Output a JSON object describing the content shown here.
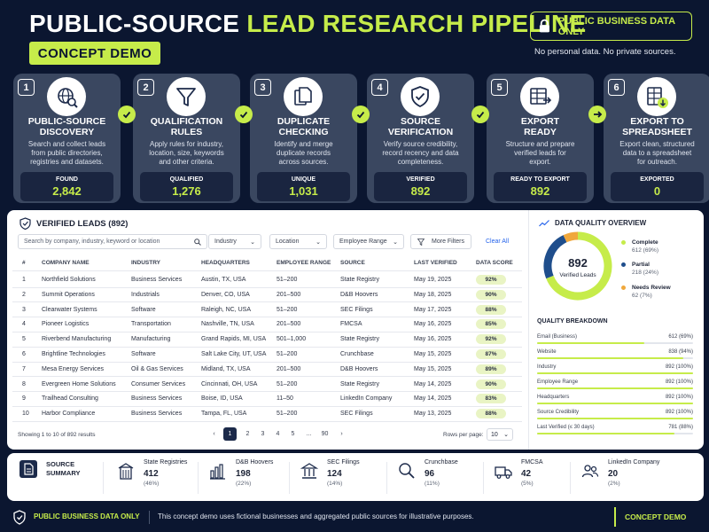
{
  "header": {
    "title_part1": "PUBLIC-SOURCE",
    "title_part2": "LEAD RESEARCH PIPELINE",
    "badge": "CONCEPT DEMO",
    "public_badge": "PUBLIC BUSINESS DATA ONLY",
    "note": "No personal data. No private sources."
  },
  "steps": [
    {
      "num": "1",
      "title": "PUBLIC-SOURCE\nDISCOVERY",
      "desc": "Search and collect leads\nfrom public directories,\nregistries and datasets.",
      "stat_label": "FOUND",
      "stat_value": "2,842",
      "icon": "globe-search-icon"
    },
    {
      "num": "2",
      "title": "QUALIFICATION\nRULES",
      "desc": "Apply rules for industry,\nlocation, size, keywords\nand other criteria.",
      "stat_label": "QUALIFIED",
      "stat_value": "1,276",
      "icon": "funnel-icon"
    },
    {
      "num": "3",
      "title": "DUPLICATE\nCHECKING",
      "desc": "Identify and merge\nduplicate records\nacross sources.",
      "stat_label": "UNIQUE",
      "stat_value": "1,031",
      "icon": "documents-icon"
    },
    {
      "num": "4",
      "title": "SOURCE\nVERIFICATION",
      "desc": "Verify source credibility,\nrecord recency and data\ncompleteness.",
      "stat_label": "VERIFIED",
      "stat_value": "892",
      "icon": "shield-check-icon"
    },
    {
      "num": "5",
      "title": "EXPORT\nREADY",
      "desc": "Structure and prepare\nverified leads for\nexport.",
      "stat_label": "READY TO EXPORT",
      "stat_value": "892",
      "icon": "table-export-icon"
    },
    {
      "num": "6",
      "title": "EXPORT TO\nSPREADSHEET",
      "desc": "Export clean, structured\ndata to a spreadsheet\nfor outreach.",
      "stat_label": "EXPORTED",
      "stat_value": "0",
      "icon": "spreadsheet-download-icon"
    }
  ],
  "leads": {
    "title": "VERIFIED LEADS (892)",
    "search_placeholder": "Search by company, industry, keyword or location",
    "filters": {
      "industry": "Industry",
      "location": "Location",
      "employee_range": "Employee Range",
      "more": "More Filters",
      "clear": "Clear All"
    },
    "columns": [
      "#",
      "COMPANY NAME",
      "INDUSTRY",
      "HEADQUARTERS",
      "EMPLOYEE RANGE",
      "SOURCE",
      "LAST VERIFIED",
      "DATA SCORE"
    ],
    "rows": [
      [
        "1",
        "Northfield Solutions",
        "Business Services",
        "Austin, TX, USA",
        "51–200",
        "State Registry",
        "May 19, 2025",
        "92%"
      ],
      [
        "2",
        "Summit Operations",
        "Industrials",
        "Denver, CO, USA",
        "201–500",
        "D&B Hoovers",
        "May 18, 2025",
        "90%"
      ],
      [
        "3",
        "Clearwater Systems",
        "Software",
        "Raleigh, NC, USA",
        "51–200",
        "SEC Filings",
        "May 17, 2025",
        "88%"
      ],
      [
        "4",
        "Pioneer Logistics",
        "Transportation",
        "Nashville, TN, USA",
        "201–500",
        "FMCSA",
        "May 16, 2025",
        "85%"
      ],
      [
        "5",
        "Riverbend Manufacturing",
        "Manufacturing",
        "Grand Rapids, MI, USA",
        "501–1,000",
        "State Registry",
        "May 16, 2025",
        "92%"
      ],
      [
        "6",
        "Brightline Technologies",
        "Software",
        "Salt Lake City, UT, USA",
        "51–200",
        "Crunchbase",
        "May 15, 2025",
        "87%"
      ],
      [
        "7",
        "Mesa Energy Services",
        "Oil & Gas Services",
        "Midland, TX, USA",
        "201–500",
        "D&B Hoovers",
        "May 15, 2025",
        "89%"
      ],
      [
        "8",
        "Evergreen Home Solutions",
        "Consumer Services",
        "Cincinnati, OH, USA",
        "51–200",
        "State Registry",
        "May 14, 2025",
        "90%"
      ],
      [
        "9",
        "Trailhead Consulting",
        "Business Services",
        "Boise, ID, USA",
        "11–50",
        "LinkedIn Company",
        "May 14, 2025",
        "83%"
      ],
      [
        "10",
        "Harbor Compliance",
        "Business Services",
        "Tampa, FL, USA",
        "51–200",
        "SEC Filings",
        "May 13, 2025",
        "88%"
      ]
    ],
    "showing": "Showing 1 to 10 of 892 results",
    "pages": [
      "1",
      "2",
      "3",
      "4",
      "5",
      "...",
      "90"
    ],
    "rows_per_page_label": "Rows per page:",
    "rows_per_page": "10"
  },
  "quality": {
    "title": "DATA QUALITY OVERVIEW",
    "center_value": "892",
    "center_label": "Verified Leads",
    "segments": [
      {
        "name": "Complete",
        "count": "612 (69%)",
        "fraction": 0.69,
        "color": "#c6ec4a"
      },
      {
        "name": "Partial",
        "count": "218 (24%)",
        "fraction": 0.24,
        "color": "#1f4e8c"
      },
      {
        "name": "Needs Review",
        "count": "62 (7%)",
        "fraction": 0.07,
        "color": "#f0a83c"
      }
    ],
    "breakdown_title": "QUALITY BREAKDOWN",
    "breakdown": [
      {
        "name": "Email (Business)",
        "value": "612 (69%)",
        "fraction": 0.69
      },
      {
        "name": "Website",
        "value": "838 (94%)",
        "fraction": 0.94
      },
      {
        "name": "Industry",
        "value": "892 (100%)",
        "fraction": 1.0
      },
      {
        "name": "Employee Range",
        "value": "892 (100%)",
        "fraction": 1.0
      },
      {
        "name": "Headquarters",
        "value": "892 (100%)",
        "fraction": 1.0
      },
      {
        "name": "Source Credibility",
        "value": "892 (100%)",
        "fraction": 1.0
      },
      {
        "name": "Last Verified (≤ 30 days)",
        "value": "781 (88%)",
        "fraction": 0.88
      }
    ]
  },
  "summary": {
    "label": "SOURCE\nSUMMARY",
    "sources": [
      {
        "name": "State Registries",
        "count": "412",
        "pct": "(46%)",
        "icon": "building-icon"
      },
      {
        "name": "D&B Hoovers",
        "count": "198",
        "pct": "(22%)",
        "icon": "bar-chart-icon"
      },
      {
        "name": "SEC Filings",
        "count": "124",
        "pct": "(14%)",
        "icon": "bank-icon"
      },
      {
        "name": "Crunchbase",
        "count": "96",
        "pct": "(11%)",
        "icon": "search-icon"
      },
      {
        "name": "FMCSA",
        "count": "42",
        "pct": "(5%)",
        "icon": "truck-icon"
      },
      {
        "name": "LinkedIn Company",
        "count": "20",
        "pct": "(2%)",
        "icon": "people-icon"
      }
    ]
  },
  "footer": {
    "badge": "PUBLIC BUSINESS DATA ONLY",
    "note": "This concept demo uses fictional businesses and aggregated public sources for illustrative purposes.",
    "demo": "CONCEPT DEMO"
  }
}
